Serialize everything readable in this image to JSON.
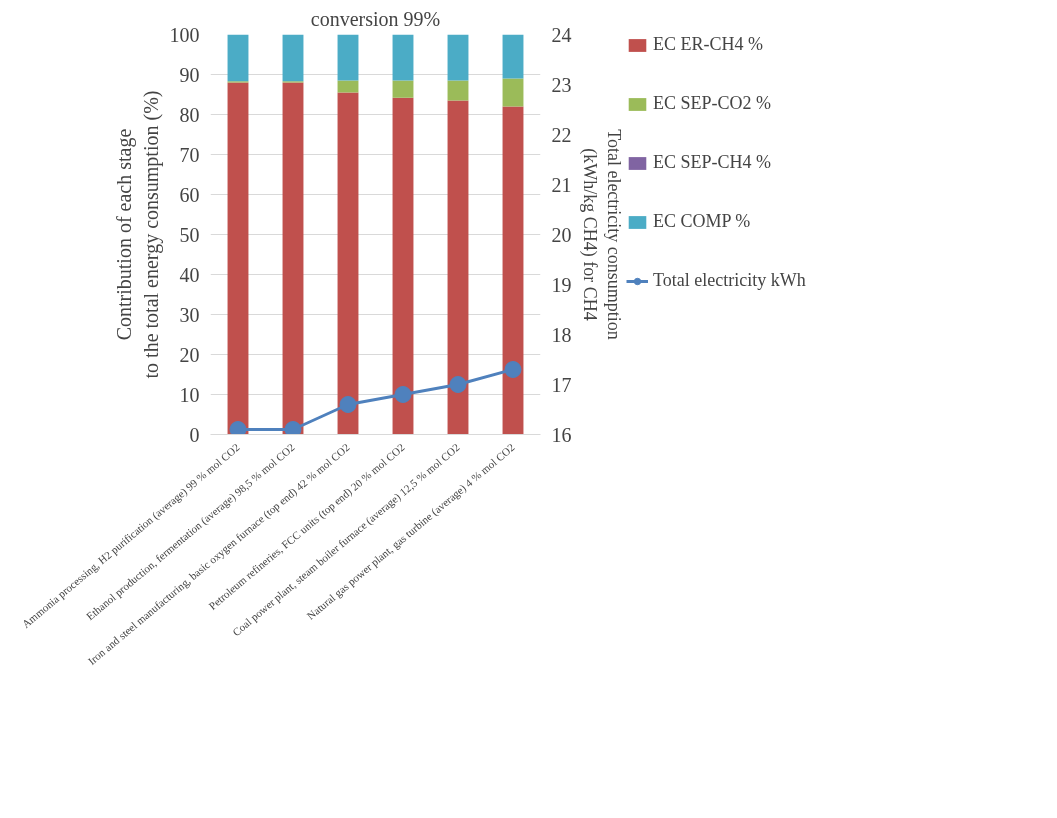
{
  "chart_data": {
    "type": "bar",
    "stacked": true,
    "title": "conversion 99%",
    "ylabel": "Contribution of each stage\nto the total energy consumption (%)",
    "y2label": "Total electricity consumption\n(kWh/kg CH4) for CH4",
    "categories": [
      "Ammonia processing, H2 purification (average) 99 % mol CO2",
      "Ethanol production, fermentation (average) 98,5 % mol CO2",
      "Iron and steel manufacturing, basic oxygen furnace (top end) 42 % mol CO2",
      "Petroleum refineries, FCC units (top end) 20 % mol CO2",
      "Coal power plant, steam boiler furnace (average) 12,5 % mol CO2",
      "Natural gas power plant, gas turbine (average) 4 % mol CO2"
    ],
    "series": [
      {
        "name": "EC ER-CH4 %",
        "color": "#c0504d",
        "values": [
          88,
          88,
          85.5,
          84.2,
          83.5,
          82
        ]
      },
      {
        "name": "EC SEP-CO2 %",
        "color": "#9bbb59",
        "values": [
          0.3,
          0.3,
          3,
          4.3,
          5,
          7
        ]
      },
      {
        "name": "EC SEP-CH4 %",
        "color": "#8064a2",
        "values": [
          0,
          0,
          0,
          0,
          0,
          0
        ]
      },
      {
        "name": "EC COMP %",
        "color": "#4bacc6",
        "values": [
          11.7,
          11.7,
          11.5,
          11.5,
          11.5,
          11
        ]
      },
      {
        "name": "Total electricity kWh",
        "type": "line",
        "axis": "y2",
        "color": "#4f81bd",
        "marker": "circle",
        "values": [
          16.1,
          16.1,
          16.6,
          16.8,
          17.0,
          17.3
        ]
      }
    ],
    "ylim": [
      0,
      100
    ],
    "yticks": [
      0,
      10,
      20,
      30,
      40,
      50,
      60,
      70,
      80,
      90,
      100
    ],
    "y2lim": [
      16,
      24
    ],
    "y2ticks": [
      16,
      17,
      18,
      19,
      20,
      21,
      22,
      23,
      24
    ],
    "grid": "y",
    "legend": "right"
  }
}
